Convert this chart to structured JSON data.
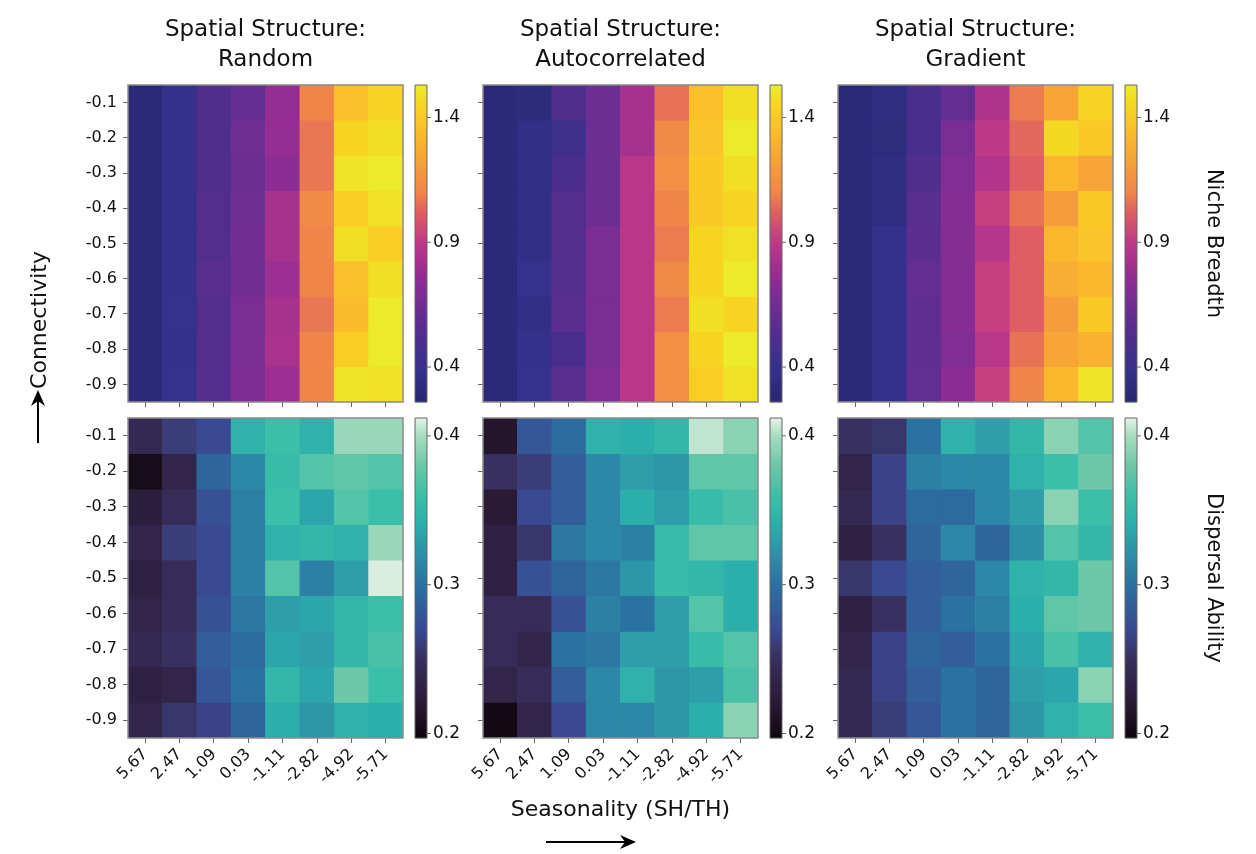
{
  "chart_data": [
    {
      "type": "heatmap",
      "title": "Spatial Structure:\nRandom",
      "tick_labels": "y",
      "clim": [
        0.26,
        1.53
      ],
      "cticks": [
        0.4,
        0.9,
        1.4
      ],
      "categories": [
        "5.67",
        "2.47",
        "1.09",
        "0.03",
        "-1.11",
        "-2.82",
        "-4.92",
        "-5.71"
      ],
      "y_categories": [
        "-0.1",
        "-0.2",
        "-0.3",
        "-0.4",
        "-0.5",
        "-0.6",
        "-0.7",
        "-0.8",
        "-0.9"
      ],
      "cells": [
        [
          0.3,
          0.38,
          0.52,
          0.6,
          0.77,
          1.1,
          1.36,
          1.44
        ],
        [
          0.3,
          0.38,
          0.52,
          0.64,
          0.77,
          1.07,
          1.45,
          1.48
        ],
        [
          0.3,
          0.38,
          0.52,
          0.63,
          0.74,
          1.07,
          1.5,
          1.52
        ],
        [
          0.3,
          0.38,
          0.54,
          0.65,
          0.82,
          1.12,
          1.42,
          1.49
        ],
        [
          0.3,
          0.38,
          0.54,
          0.66,
          0.82,
          1.1,
          1.48,
          1.42
        ],
        [
          0.3,
          0.38,
          0.56,
          0.66,
          0.79,
          1.1,
          1.36,
          1.48
        ],
        [
          0.3,
          0.4,
          0.54,
          0.68,
          0.82,
          1.07,
          1.34,
          1.52
        ],
        [
          0.3,
          0.38,
          0.55,
          0.68,
          0.83,
          1.1,
          1.42,
          1.52
        ],
        [
          0.3,
          0.4,
          0.55,
          0.69,
          0.79,
          1.1,
          1.5,
          1.49
        ]
      ]
    },
    {
      "type": "heatmap",
      "title": "Spatial Structure:\nAutocorrelated",
      "tick_labels": false,
      "clim": [
        0.26,
        1.53
      ],
      "cticks": [
        0.4,
        0.9,
        1.4
      ],
      "categories": [
        "5.67",
        "2.47",
        "1.09",
        "0.03",
        "-1.11",
        "-2.82",
        "-4.92",
        "-5.71"
      ],
      "y_categories": [
        "-0.1",
        "-0.2",
        "-0.3",
        "-0.4",
        "-0.5",
        "-0.6",
        "-0.7",
        "-0.8",
        "-0.9"
      ],
      "cells": [
        [
          0.3,
          0.31,
          0.52,
          0.63,
          0.82,
          1.06,
          1.36,
          1.48
        ],
        [
          0.3,
          0.36,
          0.44,
          0.63,
          0.82,
          1.12,
          1.38,
          1.52
        ],
        [
          0.3,
          0.36,
          0.5,
          0.63,
          0.88,
          1.14,
          1.4,
          1.48
        ],
        [
          0.3,
          0.36,
          0.54,
          0.63,
          0.88,
          1.1,
          1.4,
          1.44
        ],
        [
          0.3,
          0.36,
          0.54,
          0.68,
          0.88,
          1.08,
          1.45,
          1.49
        ],
        [
          0.3,
          0.4,
          0.55,
          0.68,
          0.88,
          1.12,
          1.45,
          1.52
        ],
        [
          0.3,
          0.36,
          0.56,
          0.68,
          0.88,
          1.08,
          1.48,
          1.44
        ],
        [
          0.3,
          0.38,
          0.5,
          0.68,
          0.88,
          1.14,
          1.45,
          1.52
        ],
        [
          0.3,
          0.4,
          0.56,
          0.7,
          0.88,
          1.14,
          1.42,
          1.49
        ]
      ]
    },
    {
      "type": "heatmap",
      "title": "Spatial Structure:\nGradient",
      "tick_labels": false,
      "clim": [
        0.26,
        1.53
      ],
      "cticks": [
        0.4,
        0.9,
        1.4
      ],
      "clabel": "Niche Breadth",
      "categories": [
        "5.67",
        "2.47",
        "1.09",
        "0.03",
        "-1.11",
        "-2.82",
        "-4.92",
        "-5.71"
      ],
      "y_categories": [
        "-0.1",
        "-0.2",
        "-0.3",
        "-0.4",
        "-0.5",
        "-0.6",
        "-0.7",
        "-0.8",
        "-0.9"
      ],
      "cells": [
        [
          0.3,
          0.34,
          0.5,
          0.6,
          0.85,
          1.08,
          1.24,
          1.44
        ],
        [
          0.3,
          0.32,
          0.5,
          0.68,
          0.9,
          1.04,
          1.46,
          1.4
        ],
        [
          0.3,
          0.34,
          0.52,
          0.7,
          0.86,
          1.02,
          1.32,
          1.24
        ],
        [
          0.3,
          0.34,
          0.56,
          0.72,
          0.92,
          1.06,
          1.2,
          1.4
        ],
        [
          0.3,
          0.38,
          0.57,
          0.72,
          0.87,
          1.02,
          1.32,
          1.38
        ],
        [
          0.3,
          0.38,
          0.6,
          0.72,
          0.92,
          1.02,
          1.28,
          1.32
        ],
        [
          0.3,
          0.38,
          0.58,
          0.72,
          0.92,
          1.02,
          1.2,
          1.4
        ],
        [
          0.3,
          0.38,
          0.58,
          0.7,
          0.88,
          1.06,
          1.24,
          1.3
        ],
        [
          0.3,
          0.38,
          0.59,
          0.74,
          0.92,
          1.1,
          1.32,
          1.5
        ]
      ]
    },
    {
      "type": "heatmap",
      "ylabel": "Connectivity",
      "clim": [
        0.197,
        0.412
      ],
      "cticks": [
        0.2,
        0.3,
        0.4
      ],
      "categories": [
        "5.67",
        "2.47",
        "1.09",
        "0.03",
        "-1.11",
        "-2.82",
        "-4.92",
        "-5.71"
      ],
      "y_categories": [
        "-0.1",
        "-0.2",
        "-0.3",
        "-0.4",
        "-0.5",
        "-0.6",
        "-0.7",
        "-0.8",
        "-0.9"
      ],
      "cells": [
        [
          0.24,
          0.26,
          0.27,
          0.345,
          0.36,
          0.345,
          0.395,
          0.395
        ],
        [
          0.205,
          0.235,
          0.29,
          0.315,
          0.355,
          0.37,
          0.375,
          0.37
        ],
        [
          0.225,
          0.245,
          0.275,
          0.31,
          0.36,
          0.335,
          0.37,
          0.36
        ],
        [
          0.235,
          0.26,
          0.27,
          0.31,
          0.345,
          0.35,
          0.345,
          0.395
        ],
        [
          0.23,
          0.245,
          0.27,
          0.31,
          0.37,
          0.31,
          0.33,
          0.41
        ],
        [
          0.235,
          0.245,
          0.275,
          0.305,
          0.33,
          0.335,
          0.35,
          0.36
        ],
        [
          0.24,
          0.25,
          0.285,
          0.295,
          0.335,
          0.33,
          0.35,
          0.365
        ],
        [
          0.23,
          0.235,
          0.28,
          0.3,
          0.35,
          0.335,
          0.38,
          0.36
        ],
        [
          0.235,
          0.255,
          0.265,
          0.29,
          0.34,
          0.325,
          0.345,
          0.34
        ]
      ]
    },
    {
      "type": "heatmap",
      "xlabel": "Seasonality (SH/TH)",
      "tick_labels": "x",
      "clim": [
        0.197,
        0.412
      ],
      "cticks": [
        0.2,
        0.3,
        0.4
      ],
      "categories": [
        "5.67",
        "2.47",
        "1.09",
        "0.03",
        "-1.11",
        "-2.82",
        "-4.92",
        "-5.71"
      ],
      "y_categories": [
        "-0.1",
        "-0.2",
        "-0.3",
        "-0.4",
        "-0.5",
        "-0.6",
        "-0.7",
        "-0.8",
        "-0.9"
      ],
      "cells": [
        [
          0.215,
          0.28,
          0.295,
          0.345,
          0.34,
          0.35,
          0.405,
          0.39
        ],
        [
          0.25,
          0.26,
          0.285,
          0.315,
          0.33,
          0.325,
          0.375,
          0.375
        ],
        [
          0.22,
          0.27,
          0.285,
          0.315,
          0.34,
          0.33,
          0.355,
          0.365
        ],
        [
          0.23,
          0.255,
          0.305,
          0.315,
          0.31,
          0.355,
          0.375,
          0.375
        ],
        [
          0.23,
          0.275,
          0.29,
          0.305,
          0.325,
          0.355,
          0.35,
          0.34
        ],
        [
          0.245,
          0.245,
          0.275,
          0.31,
          0.3,
          0.33,
          0.37,
          0.34
        ],
        [
          0.245,
          0.235,
          0.3,
          0.305,
          0.33,
          0.33,
          0.355,
          0.37
        ],
        [
          0.235,
          0.245,
          0.285,
          0.315,
          0.345,
          0.325,
          0.33,
          0.365
        ],
        [
          0.2,
          0.235,
          0.27,
          0.315,
          0.315,
          0.325,
          0.34,
          0.39
        ]
      ]
    },
    {
      "type": "heatmap",
      "tick_labels": "x",
      "clim": [
        0.197,
        0.412
      ],
      "cticks": [
        0.2,
        0.3,
        0.4
      ],
      "clabel": "Dispersal Ability",
      "categories": [
        "5.67",
        "2.47",
        "1.09",
        "0.03",
        "-1.11",
        "-2.82",
        "-4.92",
        "-5.71"
      ],
      "y_categories": [
        "-0.1",
        "-0.2",
        "-0.3",
        "-0.4",
        "-0.5",
        "-0.6",
        "-0.7",
        "-0.8",
        "-0.9"
      ],
      "cells": [
        [
          0.25,
          0.255,
          0.3,
          0.345,
          0.33,
          0.35,
          0.39,
          0.37
        ],
        [
          0.235,
          0.265,
          0.31,
          0.315,
          0.315,
          0.345,
          0.36,
          0.38
        ],
        [
          0.24,
          0.265,
          0.295,
          0.295,
          0.315,
          0.33,
          0.39,
          0.36
        ],
        [
          0.23,
          0.25,
          0.29,
          0.315,
          0.29,
          0.32,
          0.37,
          0.35
        ],
        [
          0.255,
          0.27,
          0.285,
          0.29,
          0.315,
          0.345,
          0.35,
          0.38
        ],
        [
          0.23,
          0.25,
          0.285,
          0.3,
          0.31,
          0.34,
          0.375,
          0.38
        ],
        [
          0.235,
          0.265,
          0.29,
          0.285,
          0.3,
          0.335,
          0.365,
          0.345
        ],
        [
          0.24,
          0.265,
          0.285,
          0.3,
          0.29,
          0.33,
          0.335,
          0.39
        ],
        [
          0.24,
          0.26,
          0.28,
          0.3,
          0.29,
          0.325,
          0.345,
          0.36
        ]
      ]
    }
  ]
}
